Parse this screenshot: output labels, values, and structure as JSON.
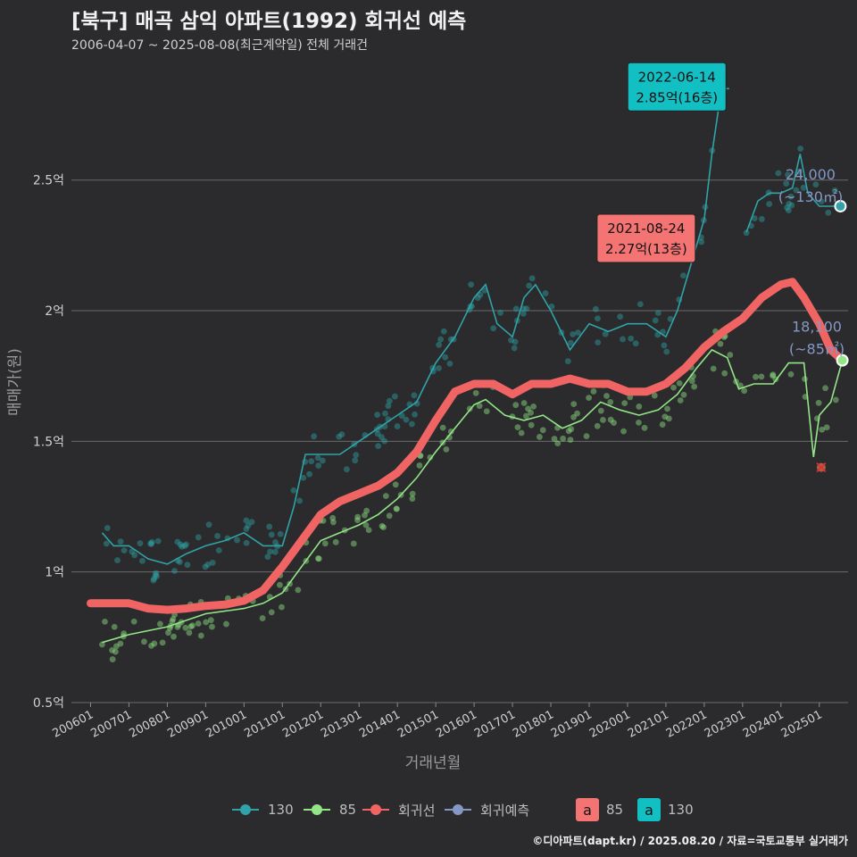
{
  "title": "[북구] 매곡 삼익 아파트(1992) 회귀선 예측",
  "subtitle": "2006-04-07 ~ 2025-08-08(최근계약일) 전체 거래건",
  "credit": "©디아파트(dapt.kr) / 2025.08.20 / 자료=국토교통부 실거래가",
  "colors": {
    "bg": "#2b2b2d",
    "s130": "#2fa3a7",
    "s85": "#93e687",
    "reg": "#f06464",
    "pred": "#8597c4",
    "box130": "#12c0c4",
    "box85": "#f47373"
  },
  "legend": {
    "items": [
      {
        "label": "130",
        "color": "#2fa3a7"
      },
      {
        "label": "85",
        "color": "#93e687"
      },
      {
        "label": "회귀선",
        "color": "#f06464"
      },
      {
        "label": "회귀예측",
        "color": "#8597c4"
      }
    ],
    "boxes": [
      {
        "glyph": "a",
        "label": "85",
        "color": "#f47373"
      },
      {
        "glyph": "a",
        "label": "130",
        "color": "#12c0c4"
      }
    ]
  },
  "chart_data": {
    "type": "line",
    "xlabel": "거래년월",
    "ylabel": "매매가(원)",
    "x_ticks": [
      "200601",
      "200701",
      "200801",
      "200901",
      "201001",
      "201101",
      "201201",
      "201301",
      "201401",
      "201501",
      "201601",
      "201701",
      "201801",
      "201901",
      "202001",
      "202101",
      "202201",
      "202301",
      "202401",
      "202501"
    ],
    "y_ticks": [
      {
        "v": 0.5,
        "label": "0.5억"
      },
      {
        "v": 1,
        "label": "1억"
      },
      {
        "v": 1.5,
        "label": "1.5억"
      },
      {
        "v": 2,
        "label": "2억"
      },
      {
        "v": 2.5,
        "label": "2.5억"
      }
    ],
    "ylim": [
      0.5,
      2.95
    ],
    "xlim": [
      2005.5,
      2025.75
    ],
    "series": [
      {
        "name": "130",
        "color": "#2fa3a7",
        "points": [
          [
            2006.3,
            1.15
          ],
          [
            2006.6,
            1.1
          ],
          [
            2007.0,
            1.1
          ],
          [
            2007.5,
            1.05
          ],
          [
            2008.0,
            1.03
          ],
          [
            2008.5,
            1.07
          ],
          [
            2009.0,
            1.1
          ],
          [
            2009.5,
            1.12
          ],
          [
            2010.0,
            1.15
          ],
          [
            2010.5,
            1.1
          ],
          [
            2011.0,
            1.1
          ],
          [
            2011.3,
            1.25
          ],
          [
            2011.6,
            1.45
          ],
          [
            2012.0,
            1.45
          ],
          [
            2012.5,
            1.45
          ],
          [
            2013.0,
            1.5
          ],
          [
            2013.5,
            1.55
          ],
          [
            2014.0,
            1.6
          ],
          [
            2014.5,
            1.65
          ],
          [
            2015.0,
            1.8
          ],
          [
            2015.5,
            1.9
          ],
          [
            2016.0,
            2.05
          ],
          [
            2016.3,
            2.1
          ],
          [
            2016.6,
            1.95
          ],
          [
            2017.0,
            1.9
          ],
          [
            2017.3,
            2.05
          ],
          [
            2017.6,
            2.1
          ],
          [
            2018.0,
            2.0
          ],
          [
            2018.5,
            1.85
          ],
          [
            2019.0,
            1.95
          ],
          [
            2019.5,
            1.92
          ],
          [
            2020.0,
            1.95
          ],
          [
            2020.5,
            1.95
          ],
          [
            2021.0,
            1.9
          ],
          [
            2021.3,
            2.0
          ],
          [
            2021.6,
            2.15
          ],
          [
            2022.0,
            2.35
          ],
          [
            2022.2,
            2.6
          ],
          [
            2022.45,
            2.85
          ],
          [
            2022.65,
            2.85
          ]
        ]
      },
      {
        "name": "130",
        "color": "#2fa3a7",
        "points": [
          [
            2023.1,
            2.3
          ],
          [
            2023.4,
            2.42
          ],
          [
            2023.7,
            2.45
          ],
          [
            2024.0,
            2.45
          ],
          [
            2024.3,
            2.47
          ],
          [
            2024.5,
            2.6
          ],
          [
            2024.7,
            2.45
          ],
          [
            2025.0,
            2.4
          ],
          [
            2025.5,
            2.4
          ]
        ]
      },
      {
        "name": "85",
        "color": "#93e687",
        "points": [
          [
            2006.3,
            0.73
          ],
          [
            2007.0,
            0.76
          ],
          [
            2008.0,
            0.79
          ],
          [
            2009.0,
            0.84
          ],
          [
            2010.0,
            0.86
          ],
          [
            2010.5,
            0.88
          ],
          [
            2011.0,
            0.92
          ],
          [
            2011.5,
            1.02
          ],
          [
            2012.0,
            1.12
          ],
          [
            2012.5,
            1.15
          ],
          [
            2013.0,
            1.18
          ],
          [
            2013.5,
            1.22
          ],
          [
            2014.0,
            1.28
          ],
          [
            2014.5,
            1.36
          ],
          [
            2015.0,
            1.46
          ],
          [
            2015.5,
            1.55
          ],
          [
            2016.0,
            1.64
          ],
          [
            2016.3,
            1.66
          ],
          [
            2016.8,
            1.6
          ],
          [
            2017.3,
            1.58
          ],
          [
            2017.8,
            1.6
          ],
          [
            2018.3,
            1.55
          ],
          [
            2018.8,
            1.58
          ],
          [
            2019.3,
            1.65
          ],
          [
            2019.8,
            1.62
          ],
          [
            2020.3,
            1.6
          ],
          [
            2020.8,
            1.62
          ],
          [
            2021.3,
            1.68
          ],
          [
            2021.8,
            1.78
          ],
          [
            2022.2,
            1.85
          ],
          [
            2022.6,
            1.82
          ],
          [
            2022.9,
            1.7
          ],
          [
            2023.3,
            1.72
          ],
          [
            2023.8,
            1.72
          ],
          [
            2024.2,
            1.8
          ],
          [
            2024.6,
            1.8
          ],
          [
            2024.85,
            1.44
          ],
          [
            2025.0,
            1.6
          ],
          [
            2025.3,
            1.65
          ],
          [
            2025.6,
            1.81
          ]
        ]
      }
    ],
    "regression": {
      "name": "회귀선",
      "color": "#f06464",
      "points": [
        [
          2006.0,
          0.88
        ],
        [
          2007.0,
          0.88
        ],
        [
          2007.5,
          0.86
        ],
        [
          2008.0,
          0.855
        ],
        [
          2008.5,
          0.86
        ],
        [
          2009.0,
          0.87
        ],
        [
          2009.5,
          0.875
        ],
        [
          2010.0,
          0.89
        ],
        [
          2010.5,
          0.93
        ],
        [
          2011.0,
          1.02
        ],
        [
          2011.5,
          1.12
        ],
        [
          2012.0,
          1.22
        ],
        [
          2012.5,
          1.27
        ],
        [
          2013.0,
          1.3
        ],
        [
          2013.5,
          1.33
        ],
        [
          2014.0,
          1.38
        ],
        [
          2014.5,
          1.46
        ],
        [
          2015.0,
          1.58
        ],
        [
          2015.5,
          1.69
        ],
        [
          2016.0,
          1.72
        ],
        [
          2016.5,
          1.72
        ],
        [
          2017.0,
          1.68
        ],
        [
          2017.5,
          1.72
        ],
        [
          2018.0,
          1.72
        ],
        [
          2018.5,
          1.74
        ],
        [
          2019.0,
          1.72
        ],
        [
          2019.5,
          1.72
        ],
        [
          2020.0,
          1.69
        ],
        [
          2020.5,
          1.69
        ],
        [
          2021.0,
          1.72
        ],
        [
          2021.5,
          1.78
        ],
        [
          2022.0,
          1.86
        ],
        [
          2022.5,
          1.92
        ],
        [
          2023.0,
          1.97
        ],
        [
          2023.5,
          2.05
        ],
        [
          2024.0,
          2.1
        ],
        [
          2024.3,
          2.11
        ],
        [
          2024.6,
          2.05
        ],
        [
          2025.0,
          1.95
        ],
        [
          2025.3,
          1.85
        ],
        [
          2025.6,
          1.81
        ]
      ]
    },
    "end_points": [
      {
        "series": "130",
        "x": 2025.55,
        "y": 2.4,
        "color": "#2fa3a7"
      },
      {
        "series": "85",
        "x": 2025.6,
        "y": 1.81,
        "color": "#93e687"
      }
    ],
    "cancelled_mark": {
      "x": 2025.05,
      "y": 1.4
    },
    "annotations": [
      {
        "date": "2022-06-14",
        "price": "2.85억(16층)",
        "x": 2022.45,
        "y": 2.85,
        "color": "#12c0c4"
      },
      {
        "date": "2021-08-24",
        "price": "2.27억(13층)",
        "x": 2021.65,
        "y": 2.27,
        "color": "#f47373"
      }
    ],
    "end_labels": [
      {
        "line1": "24,000",
        "line2": "(~130㎡)",
        "color": "#8597c4"
      },
      {
        "line1": "18,100",
        "line2": "(~85㎡)",
        "color": "#8597c4"
      }
    ],
    "grid": true
  }
}
